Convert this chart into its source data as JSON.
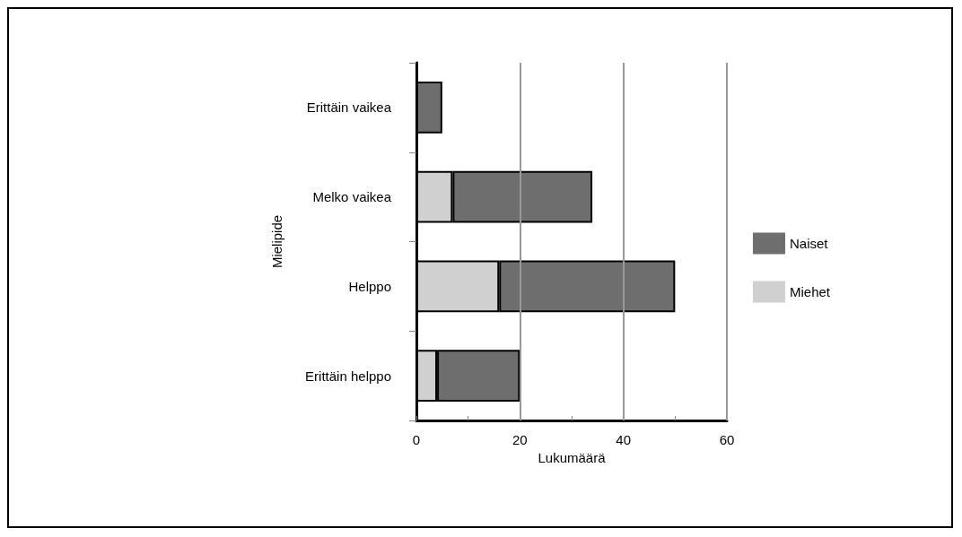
{
  "chart_data": {
    "type": "bar",
    "orientation": "horizontal",
    "stacked": true,
    "xlabel": "Lukumäärä",
    "ylabel": "Mielipide",
    "categories": [
      "Erittäin vaikea",
      "Melko vaikea",
      "Helppo",
      "Erittäin helppo"
    ],
    "series": [
      {
        "name": "Miehet",
        "color": "#d0d0d0",
        "values": [
          0,
          7,
          16,
          4
        ]
      },
      {
        "name": "Naiset",
        "color": "#6e6e6e",
        "values": [
          5,
          27,
          34,
          16
        ]
      }
    ],
    "xlim": [
      0,
      60
    ],
    "xticks": [
      0,
      {
        "value": 10,
        "label": null
      },
      20,
      {
        "value": 30,
        "label": null
      },
      40,
      {
        "value": 50,
        "label": null
      },
      60
    ],
    "grid": "x",
    "legend": "right"
  }
}
